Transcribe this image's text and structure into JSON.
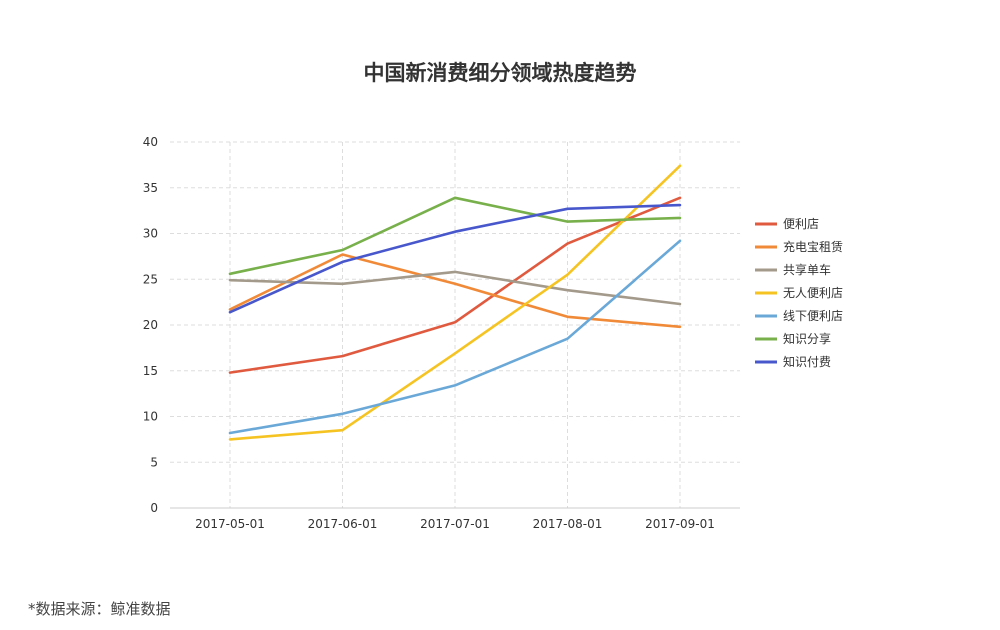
{
  "chart_data": {
    "type": "line",
    "title": "中国新消费细分领域热度趋势",
    "xlabel": "",
    "ylabel": "",
    "categories": [
      "2017-05-01",
      "2017-06-01",
      "2017-07-01",
      "2017-08-01",
      "2017-09-01"
    ],
    "ylim": [
      0,
      40
    ],
    "yticks": [
      0,
      5,
      10,
      15,
      20,
      25,
      30,
      35,
      40
    ],
    "grid": true,
    "legend_position": "right",
    "series": [
      {
        "name": "便利店",
        "color": "#e05a3f",
        "values": [
          14.8,
          16.6,
          20.3,
          28.9,
          33.9
        ]
      },
      {
        "name": "充电宝租赁",
        "color": "#f08a38",
        "values": [
          21.7,
          27.7,
          24.5,
          20.9,
          19.8
        ]
      },
      {
        "name": "共享单车",
        "color": "#a49a8b",
        "values": [
          24.9,
          24.5,
          25.8,
          23.8,
          22.3
        ]
      },
      {
        "name": "无人便利店",
        "color": "#f5c423",
        "values": [
          7.5,
          8.5,
          16.9,
          25.5,
          37.4
        ]
      },
      {
        "name": "线下便利店",
        "color": "#6aa8d8",
        "values": [
          8.2,
          10.3,
          13.4,
          18.5,
          29.2
        ]
      },
      {
        "name": "知识分享",
        "color": "#78b04b",
        "values": [
          25.6,
          28.2,
          33.9,
          31.3,
          31.7
        ]
      },
      {
        "name": "知识付费",
        "color": "#4858cc",
        "values": [
          21.4,
          26.9,
          30.2,
          32.7,
          33.1
        ]
      }
    ]
  },
  "source_text": "*数据来源：鲸准数据"
}
